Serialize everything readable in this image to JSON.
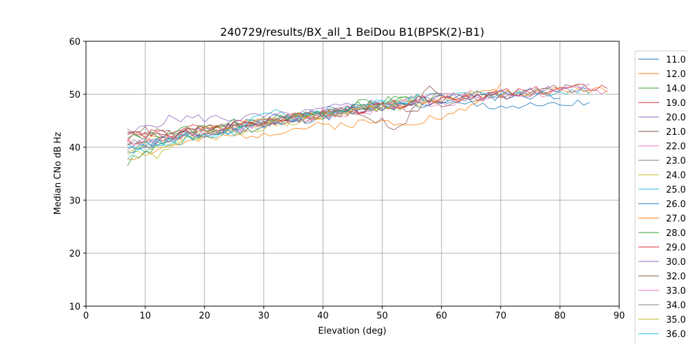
{
  "chart_data": {
    "type": "line",
    "title": "240729/results/BX_all_1 BeiDou B1(BPSK(2)-B1)",
    "xlabel": "Elevation (deg)",
    "ylabel": "Median CNo dB Hz",
    "xlim": [
      0,
      90
    ],
    "ylim": [
      10,
      60
    ],
    "xticks": [
      "0",
      "10",
      "20",
      "30",
      "40",
      "50",
      "60",
      "70",
      "80",
      "90"
    ],
    "yticks": [
      "10",
      "20",
      "30",
      "40",
      "50",
      "60"
    ],
    "grid": true,
    "legend_position": "right",
    "series": [
      {
        "name": "11.0",
        "color": "#1f77b4",
        "start": 7,
        "end": 85,
        "values": [
          [
            7,
            39
          ],
          [
            15,
            41.5
          ],
          [
            25,
            44
          ],
          [
            35,
            46
          ],
          [
            45,
            47.5
          ],
          [
            55,
            48
          ],
          [
            65,
            48
          ],
          [
            75,
            47.5
          ],
          [
            85,
            48.3
          ]
        ]
      },
      {
        "name": "12.0",
        "color": "#ff7f0e",
        "start": 7,
        "end": 70,
        "values": [
          [
            7,
            38
          ],
          [
            15,
            40.5
          ],
          [
            25,
            42
          ],
          [
            35,
            43.5
          ],
          [
            45,
            44.5
          ],
          [
            55,
            45
          ],
          [
            62,
            46
          ],
          [
            70,
            51.5
          ]
        ]
      },
      {
        "name": "14.0",
        "color": "#2ca02c",
        "start": 7,
        "end": 60,
        "values": [
          [
            7,
            37
          ],
          [
            15,
            42
          ],
          [
            25,
            44
          ],
          [
            35,
            46
          ],
          [
            45,
            48
          ],
          [
            55,
            49.5
          ],
          [
            60,
            49.5
          ]
        ]
      },
      {
        "name": "19.0",
        "color": "#d62728",
        "start": 7,
        "end": 75,
        "values": [
          [
            7,
            42
          ],
          [
            15,
            43
          ],
          [
            25,
            44.5
          ],
          [
            35,
            45.5
          ],
          [
            45,
            47
          ],
          [
            55,
            48.5
          ],
          [
            65,
            49.5
          ],
          [
            75,
            50
          ]
        ]
      },
      {
        "name": "20.0",
        "color": "#9467bd",
        "start": 7,
        "end": 60,
        "values": [
          [
            7,
            42
          ],
          [
            10,
            44
          ],
          [
            15,
            45.5
          ],
          [
            25,
            45.5
          ],
          [
            35,
            46
          ],
          [
            45,
            48
          ],
          [
            55,
            49
          ],
          [
            60,
            49
          ]
        ]
      },
      {
        "name": "21.0",
        "color": "#8c564b",
        "start": 7,
        "end": 85,
        "values": [
          [
            7,
            43
          ],
          [
            15,
            42.5
          ],
          [
            25,
            44
          ],
          [
            35,
            45
          ],
          [
            45,
            47
          ],
          [
            55,
            47.5
          ],
          [
            65,
            49.5
          ],
          [
            75,
            50.5
          ],
          [
            85,
            51.5
          ]
        ]
      },
      {
        "name": "22.0",
        "color": "#e377c2",
        "start": 7,
        "end": 88,
        "values": [
          [
            7,
            41
          ],
          [
            15,
            42
          ],
          [
            25,
            43.5
          ],
          [
            35,
            45
          ],
          [
            45,
            46.5
          ],
          [
            55,
            48
          ],
          [
            65,
            49
          ],
          [
            75,
            50
          ],
          [
            88,
            51
          ]
        ]
      },
      {
        "name": "23.0",
        "color": "#7f7f7f",
        "start": 7,
        "end": 80,
        "values": [
          [
            7,
            40.5
          ],
          [
            15,
            42
          ],
          [
            25,
            44
          ],
          [
            35,
            45.5
          ],
          [
            45,
            47
          ],
          [
            55,
            48.5
          ],
          [
            65,
            50
          ],
          [
            80,
            50.5
          ]
        ]
      },
      {
        "name": "24.0",
        "color": "#bcbd22",
        "start": 7,
        "end": 60,
        "values": [
          [
            7,
            39
          ],
          [
            12,
            38.5
          ],
          [
            15,
            41
          ],
          [
            25,
            43
          ],
          [
            35,
            45
          ],
          [
            45,
            47
          ],
          [
            55,
            48
          ],
          [
            60,
            49
          ]
        ]
      },
      {
        "name": "25.0",
        "color": "#17becf",
        "start": 7,
        "end": 85,
        "values": [
          [
            7,
            38.5
          ],
          [
            15,
            41
          ],
          [
            25,
            43.5
          ],
          [
            35,
            45.5
          ],
          [
            45,
            47.5
          ],
          [
            55,
            49
          ],
          [
            65,
            50
          ],
          [
            75,
            50.5
          ],
          [
            85,
            50.5
          ]
        ]
      },
      {
        "name": "26.0",
        "color": "#1f77b4",
        "start": 7,
        "end": 80,
        "values": [
          [
            7,
            40
          ],
          [
            15,
            41.5
          ],
          [
            25,
            43
          ],
          [
            35,
            45
          ],
          [
            45,
            46.5
          ],
          [
            55,
            48
          ],
          [
            65,
            49.5
          ],
          [
            80,
            50
          ]
        ]
      },
      {
        "name": "27.0",
        "color": "#ff7f0e",
        "start": 7,
        "end": 88,
        "values": [
          [
            7,
            41
          ],
          [
            15,
            42
          ],
          [
            25,
            44
          ],
          [
            35,
            45.5
          ],
          [
            45,
            47
          ],
          [
            55,
            48.5
          ],
          [
            65,
            50
          ],
          [
            75,
            50.5
          ],
          [
            88,
            51
          ]
        ]
      },
      {
        "name": "28.0",
        "color": "#2ca02c",
        "start": 7,
        "end": 55,
        "values": [
          [
            7,
            41.5
          ],
          [
            15,
            43
          ],
          [
            25,
            44.5
          ],
          [
            35,
            45.5
          ],
          [
            45,
            47.5
          ],
          [
            55,
            49.5
          ]
        ]
      },
      {
        "name": "29.0",
        "color": "#d62728",
        "start": 7,
        "end": 88,
        "values": [
          [
            7,
            42.5
          ],
          [
            15,
            42.5
          ],
          [
            25,
            44
          ],
          [
            35,
            45.5
          ],
          [
            45,
            47
          ],
          [
            55,
            48.5
          ],
          [
            65,
            50
          ],
          [
            75,
            50.5
          ],
          [
            88,
            51.5
          ]
        ]
      },
      {
        "name": "30.0",
        "color": "#9467bd",
        "start": 7,
        "end": 85,
        "values": [
          [
            7,
            40
          ],
          [
            15,
            42
          ],
          [
            25,
            44
          ],
          [
            35,
            45.5
          ],
          [
            45,
            47
          ],
          [
            55,
            48.5
          ],
          [
            65,
            49.5
          ],
          [
            75,
            50.5
          ],
          [
            85,
            51.5
          ]
        ]
      },
      {
        "name": "32.0",
        "color": "#8c564b",
        "start": 7,
        "end": 60,
        "values": [
          [
            7,
            43.5
          ],
          [
            15,
            42.5
          ],
          [
            25,
            44
          ],
          [
            35,
            45.5
          ],
          [
            45,
            47
          ],
          [
            53,
            43.5
          ],
          [
            58,
            51.5
          ],
          [
            60,
            50
          ]
        ]
      },
      {
        "name": "33.0",
        "color": "#e377c2",
        "start": 7,
        "end": 65,
        "values": [
          [
            7,
            41
          ],
          [
            15,
            42
          ],
          [
            25,
            43.5
          ],
          [
            35,
            45.5
          ],
          [
            45,
            47.5
          ],
          [
            55,
            49
          ],
          [
            65,
            50
          ]
        ]
      },
      {
        "name": "34.0",
        "color": "#7f7f7f",
        "start": 7,
        "end": 60,
        "values": [
          [
            7,
            40
          ],
          [
            15,
            41.5
          ],
          [
            25,
            43.5
          ],
          [
            35,
            45.5
          ],
          [
            45,
            47
          ],
          [
            55,
            48.5
          ],
          [
            60,
            50
          ]
        ]
      },
      {
        "name": "35.0",
        "color": "#bcbd22",
        "start": 7,
        "end": 55,
        "values": [
          [
            7,
            39
          ],
          [
            15,
            41
          ],
          [
            25,
            43
          ],
          [
            35,
            45
          ],
          [
            45,
            47
          ],
          [
            55,
            48.5
          ]
        ]
      },
      {
        "name": "36.0",
        "color": "#17becf",
        "start": 7,
        "end": 55,
        "values": [
          [
            7,
            40
          ],
          [
            15,
            41.5
          ],
          [
            25,
            43
          ],
          [
            32,
            48
          ],
          [
            35,
            45.5
          ],
          [
            45,
            47
          ],
          [
            55,
            49
          ]
        ]
      }
    ]
  }
}
